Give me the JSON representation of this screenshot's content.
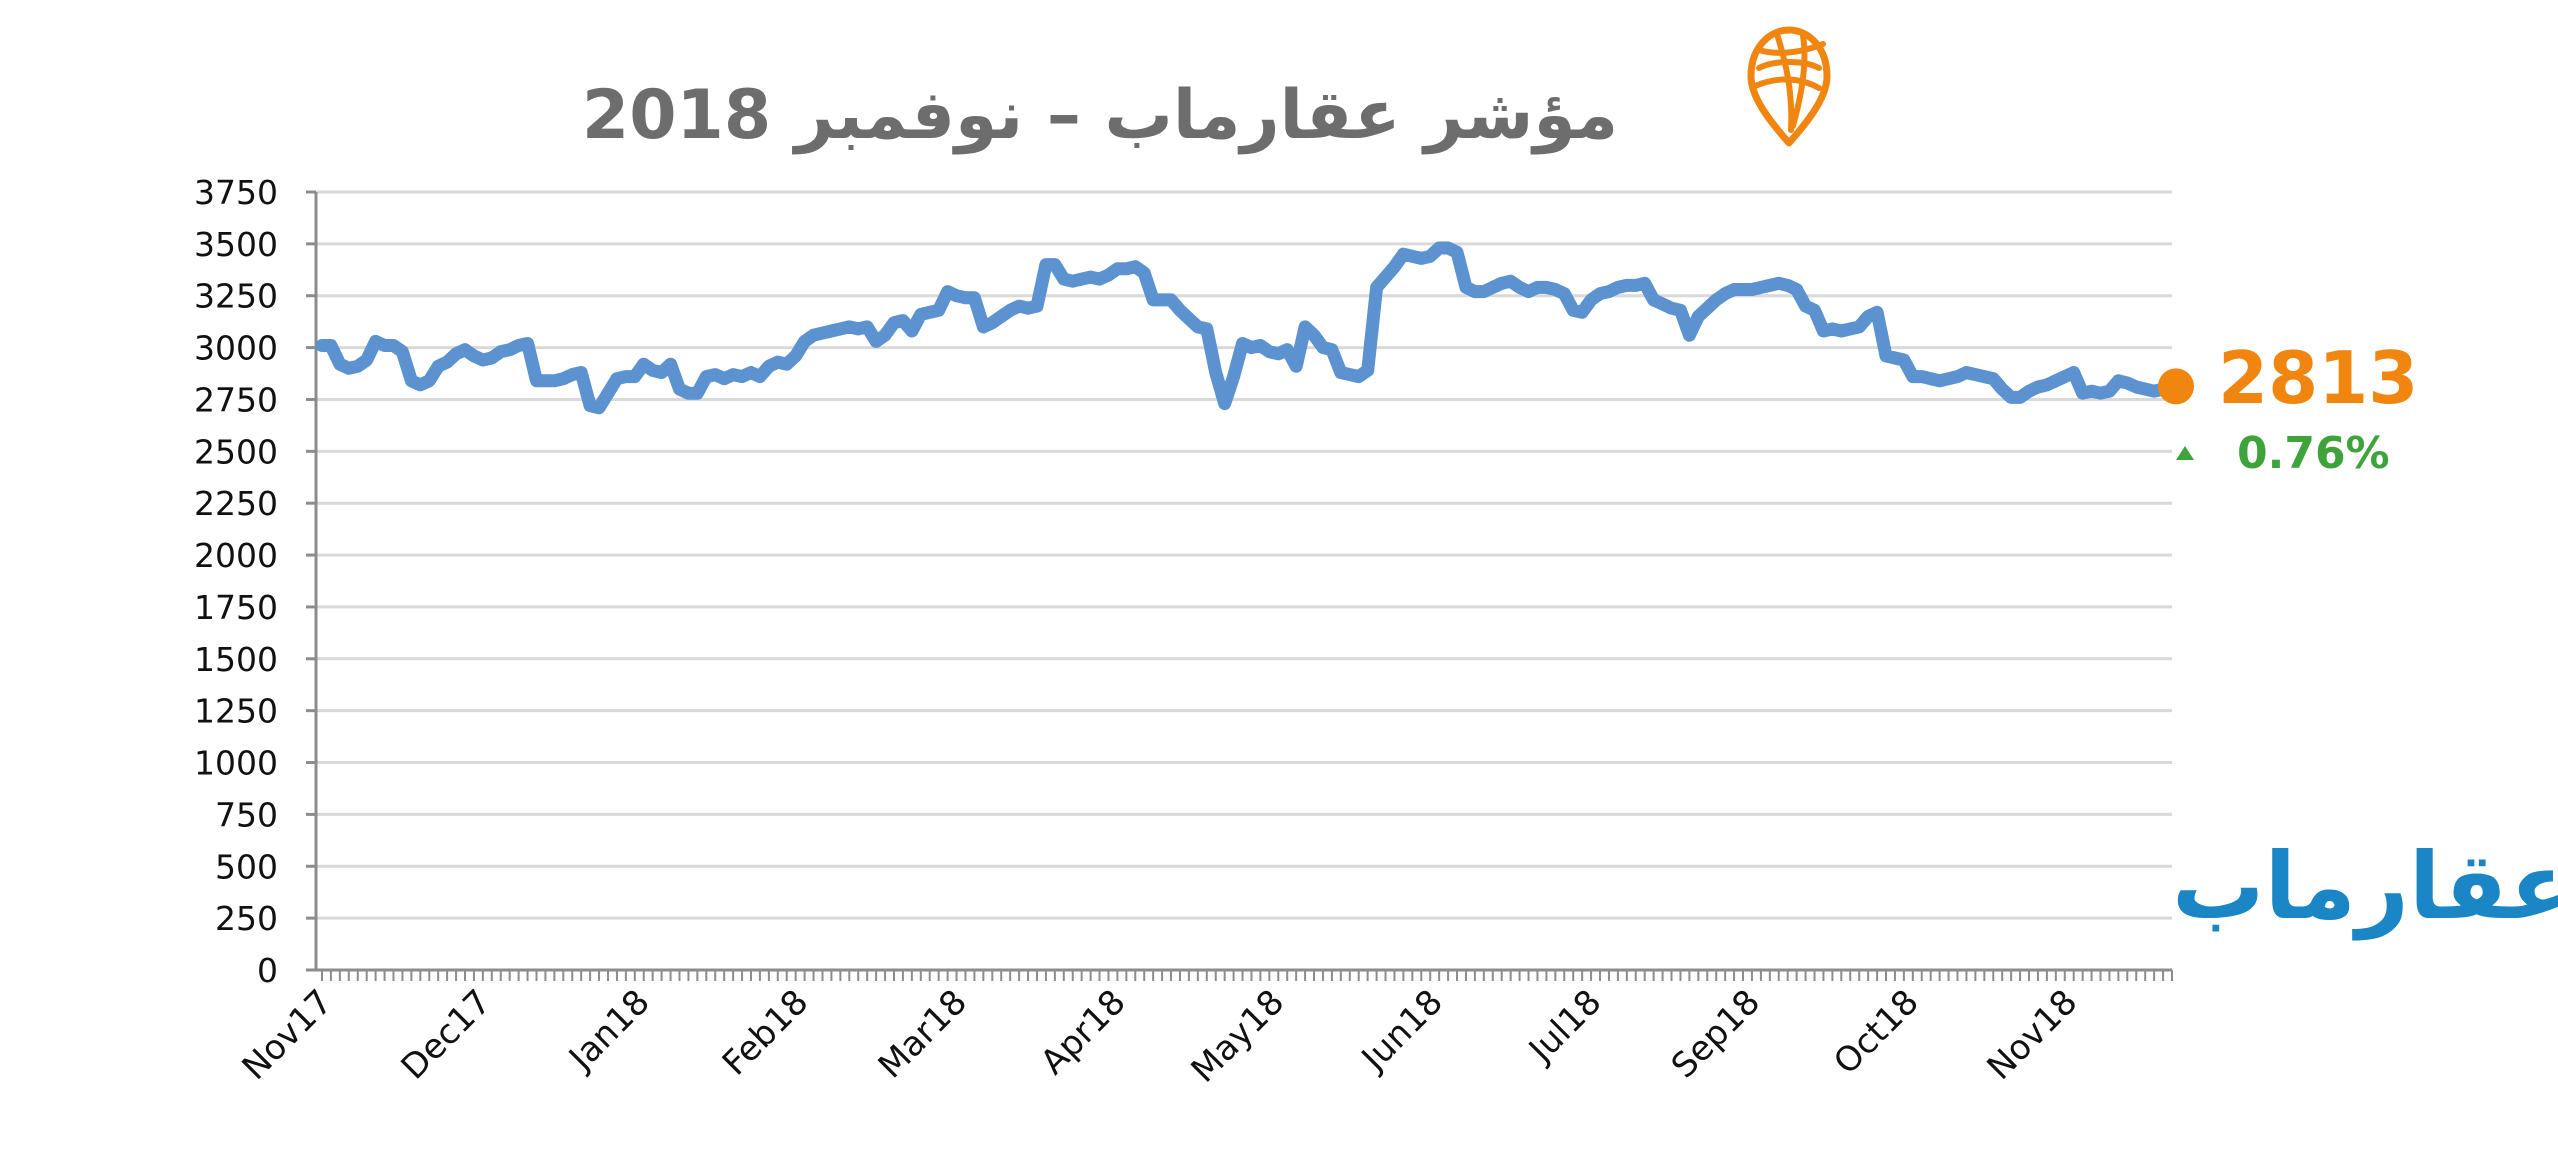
{
  "colors": {
    "line": "#5b92cf",
    "grid": "#d9d9d9",
    "axis": "#8c8c8c",
    "title": "#6d6d6d",
    "latest": "#f0860f",
    "up": "#3ea33a",
    "brand": "#1a86c5"
  },
  "icons": {
    "logo": "map-pin-globe-icon",
    "change": "triangle-up-icon"
  },
  "header": {
    "title": "مؤشر عقارماب – نوفمبر 2018"
  },
  "latest": {
    "value": "2813",
    "change": "0.76%"
  },
  "brand": {
    "name": "عقارماب"
  },
  "chart_data": {
    "type": "line",
    "title": "مؤشر عقارماب – نوفمبر 2018",
    "xlabel": "",
    "ylabel": "",
    "ylim": [
      0,
      3750
    ],
    "yticks": [
      0,
      250,
      500,
      750,
      1000,
      1250,
      1500,
      1750,
      2000,
      2250,
      2500,
      2750,
      3000,
      3250,
      3500,
      3750
    ],
    "x_tick_labels": [
      "Nov17",
      "Dec17",
      "Jan18",
      "Feb18",
      "Mar18",
      "Apr18",
      "May18",
      "Jun18",
      "Jul18",
      "Sep18",
      "Oct18",
      "Nov18"
    ],
    "grid": true,
    "legend": "none",
    "series": [
      {
        "values": [
          3010,
          3010,
          2920,
          2900,
          2910,
          2940,
          3030,
          3010,
          3010,
          2980,
          2840,
          2820,
          2840,
          2910,
          2930,
          2970,
          2990,
          2960,
          2940,
          2950,
          2980,
          2990,
          3010,
          3020,
          2840,
          2840,
          2840,
          2850,
          2870,
          2880,
          2720,
          2710,
          2780,
          2850,
          2860,
          2860,
          2920,
          2890,
          2880,
          2920,
          2800,
          2780,
          2780,
          2860,
          2870,
          2850,
          2870,
          2860,
          2880,
          2860,
          2910,
          2930,
          2920,
          2960,
          3030,
          3060,
          3070,
          3080,
          3090,
          3100,
          3090,
          3100,
          3030,
          3060,
          3120,
          3130,
          3080,
          3160,
          3170,
          3180,
          3270,
          3250,
          3240,
          3240,
          3100,
          3120,
          3150,
          3180,
          3200,
          3190,
          3200,
          3400,
          3400,
          3330,
          3320,
          3330,
          3340,
          3330,
          3350,
          3380,
          3380,
          3390,
          3360,
          3230,
          3230,
          3230,
          3180,
          3140,
          3100,
          3090,
          2880,
          2730,
          2860,
          3020,
          3000,
          3010,
          2980,
          2970,
          2990,
          2910,
          3100,
          3060,
          3000,
          2990,
          2880,
          2870,
          2860,
          2890,
          3290,
          3340,
          3390,
          3450,
          3440,
          3430,
          3440,
          3480,
          3480,
          3460,
          3290,
          3270,
          3270,
          3290,
          3310,
          3320,
          3290,
          3270,
          3290,
          3290,
          3280,
          3260,
          3180,
          3170,
          3230,
          3260,
          3270,
          3290,
          3300,
          3300,
          3310,
          3230,
          3210,
          3190,
          3180,
          3060,
          3150,
          3190,
          3230,
          3260,
          3280,
          3280,
          3280,
          3290,
          3300,
          3310,
          3300,
          3280,
          3200,
          3180,
          3080,
          3090,
          3080,
          3090,
          3100,
          3150,
          3170,
          2960,
          2950,
          2940,
          2860,
          2860,
          2850,
          2840,
          2850,
          2860,
          2880,
          2870,
          2860,
          2850,
          2800,
          2760,
          2760,
          2790,
          2810,
          2820,
          2840,
          2860,
          2880,
          2780,
          2790,
          2780,
          2790,
          2840,
          2830,
          2810,
          2800,
          2790,
          2800,
          2813
        ]
      }
    ]
  }
}
